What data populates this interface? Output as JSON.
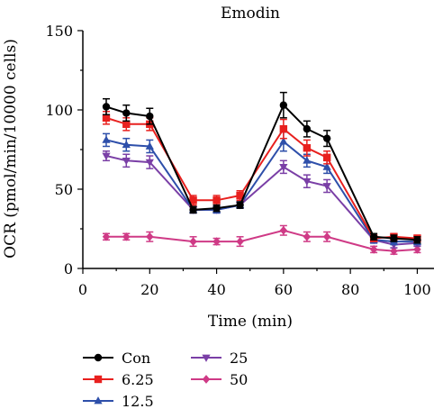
{
  "chart_data": {
    "type": "line",
    "title": "Emodin",
    "xlabel": "Time (min)",
    "ylabel": "OCR (pmol/min/10000 cells)",
    "xlim": [
      0,
      105
    ],
    "ylim": [
      0,
      150
    ],
    "xticks": [
      0,
      20,
      40,
      60,
      80,
      100
    ],
    "yticks": [
      0,
      50,
      100,
      150
    ],
    "grid": false,
    "legend_position": "bottom-left",
    "x": [
      7,
      13,
      20,
      33,
      40,
      47,
      60,
      67,
      73,
      87,
      93,
      100
    ],
    "series": [
      {
        "name": "Con",
        "color": "#000000",
        "marker": "circle",
        "values": [
          102,
          98,
          96,
          37,
          38,
          40,
          103,
          88,
          82,
          20,
          19,
          18
        ],
        "errors": [
          5,
          5,
          5,
          2,
          2,
          2,
          8,
          5,
          5,
          2,
          2,
          2
        ]
      },
      {
        "name": "6.25",
        "color": "#e8201e",
        "marker": "square",
        "values": [
          95,
          91,
          91,
          43,
          43,
          46,
          88,
          76,
          70,
          19,
          20,
          19
        ],
        "errors": [
          4,
          4,
          4,
          3,
          3,
          3,
          6,
          5,
          4,
          2,
          2,
          2
        ]
      },
      {
        "name": "12.5",
        "color": "#2e4faa",
        "marker": "triangle-up",
        "values": [
          81,
          78,
          77,
          37,
          37,
          40,
          80,
          68,
          64,
          18,
          17,
          17
        ],
        "errors": [
          4,
          4,
          4,
          2,
          2,
          2,
          6,
          4,
          4,
          2,
          2,
          2
        ]
      },
      {
        "name": "25",
        "color": "#7a3fa6",
        "marker": "triangle-down",
        "values": [
          71,
          68,
          67,
          37,
          37,
          40,
          64,
          55,
          52,
          18,
          15,
          16
        ],
        "errors": [
          3,
          4,
          4,
          2,
          2,
          2,
          4,
          4,
          4,
          2,
          2,
          2
        ]
      },
      {
        "name": "50",
        "color": "#cf3a86",
        "marker": "diamond",
        "values": [
          20,
          20,
          20,
          17,
          17,
          17,
          24,
          20,
          20,
          12,
          11,
          12
        ],
        "errors": [
          2,
          2,
          3,
          3,
          2,
          3,
          3,
          3,
          3,
          2,
          2,
          2
        ]
      }
    ]
  }
}
